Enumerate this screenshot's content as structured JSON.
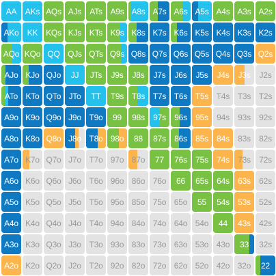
{
  "colors": {
    "empty": "#e3e3e3",
    "B": "#0f79c1",
    "C": "#23c1ec",
    "G": "#79c143",
    "O": "#fbb54c"
  },
  "legend_note": "segments: B=dark blue, C=cyan, G=green, O=orange (fractions of cell width)",
  "rows": [
    [
      {
        "label": "AA",
        "segs": [
          [
            "C",
            1
          ]
        ]
      },
      {
        "label": "AKs",
        "segs": [
          [
            "C",
            1
          ]
        ]
      },
      {
        "label": "AQs",
        "segs": [
          [
            "G",
            1
          ]
        ]
      },
      {
        "label": "AJs",
        "segs": [
          [
            "G",
            1
          ]
        ]
      },
      {
        "label": "ATs",
        "segs": [
          [
            "G",
            1
          ]
        ]
      },
      {
        "label": "A9s",
        "segs": [
          [
            "G",
            1
          ]
        ]
      },
      {
        "label": "A8s",
        "segs": [
          [
            "G",
            0.15
          ],
          [
            "C",
            0.85
          ]
        ]
      },
      {
        "label": "A7s",
        "segs": [
          [
            "G",
            0.4
          ],
          [
            "B",
            0.6
          ]
        ]
      },
      {
        "label": "A6s",
        "segs": [
          [
            "G",
            0.6
          ],
          [
            "C",
            0.4
          ]
        ]
      },
      {
        "label": "A5s",
        "segs": [
          [
            "B",
            0.3
          ],
          [
            "C",
            0.7
          ]
        ]
      },
      {
        "label": "A4s",
        "segs": [
          [
            "G",
            1
          ]
        ]
      },
      {
        "label": "A3s",
        "segs": [
          [
            "G",
            1
          ]
        ]
      },
      {
        "label": "A2s",
        "segs": [
          [
            "G",
            1
          ]
        ]
      }
    ],
    [
      {
        "label": "AKo",
        "segs": [
          [
            "B",
            0.3
          ],
          [
            "C",
            0.7
          ]
        ]
      },
      {
        "label": "KK",
        "segs": [
          [
            "C",
            1
          ]
        ]
      },
      {
        "label": "KQs",
        "segs": [
          [
            "G",
            1
          ]
        ]
      },
      {
        "label": "KJs",
        "segs": [
          [
            "G",
            1
          ]
        ]
      },
      {
        "label": "KTs",
        "segs": [
          [
            "G",
            1
          ]
        ]
      },
      {
        "label": "K9s",
        "segs": [
          [
            "G",
            0.65
          ],
          [
            "C",
            0.35
          ]
        ]
      },
      {
        "label": "K8s",
        "segs": [
          [
            "G",
            0.4
          ],
          [
            "B",
            0.6
          ]
        ]
      },
      {
        "label": "K7s",
        "segs": [
          [
            "B",
            1
          ]
        ]
      },
      {
        "label": "K6s",
        "segs": [
          [
            "G",
            0.3
          ],
          [
            "B",
            0.7
          ]
        ]
      },
      {
        "label": "K5s",
        "segs": [
          [
            "B",
            1
          ]
        ]
      },
      {
        "label": "K4s",
        "segs": [
          [
            "B",
            1
          ]
        ]
      },
      {
        "label": "K3s",
        "segs": [
          [
            "B",
            1
          ]
        ]
      },
      {
        "label": "K2s",
        "segs": [
          [
            "B",
            1
          ]
        ]
      }
    ],
    [
      {
        "label": "AQo",
        "segs": [
          [
            "G",
            0.55
          ],
          [
            "C",
            0.45
          ]
        ]
      },
      {
        "label": "KQo",
        "segs": [
          [
            "G",
            1
          ]
        ]
      },
      {
        "label": "QQ",
        "segs": [
          [
            "C",
            1
          ]
        ]
      },
      {
        "label": "QJs",
        "segs": [
          [
            "G",
            1
          ]
        ]
      },
      {
        "label": "QTs",
        "segs": [
          [
            "G",
            1
          ]
        ]
      },
      {
        "label": "Q9s",
        "segs": [
          [
            "G",
            0.7
          ],
          [
            "C",
            0.3
          ]
        ]
      },
      {
        "label": "Q8s",
        "segs": [
          [
            "B",
            1
          ]
        ]
      },
      {
        "label": "Q7s",
        "segs": [
          [
            "B",
            1
          ]
        ]
      },
      {
        "label": "Q6s",
        "segs": [
          [
            "B",
            1
          ]
        ]
      },
      {
        "label": "Q5s",
        "segs": [
          [
            "B",
            1
          ]
        ]
      },
      {
        "label": "Q4s",
        "segs": [
          [
            "B",
            1
          ]
        ]
      },
      {
        "label": "Q3s",
        "segs": [
          [
            "B",
            1
          ]
        ]
      },
      {
        "label": "Q2s",
        "segs": [
          [
            "O",
            1
          ]
        ]
      }
    ],
    [
      {
        "label": "AJo",
        "segs": [
          [
            "G",
            0.2
          ],
          [
            "B",
            0.8
          ]
        ]
      },
      {
        "label": "KJo",
        "segs": [
          [
            "G",
            0.3
          ],
          [
            "B",
            0.7
          ]
        ]
      },
      {
        "label": "QJo",
        "segs": [
          [
            "B",
            1
          ]
        ]
      },
      {
        "label": "JJ",
        "segs": [
          [
            "C",
            1
          ]
        ]
      },
      {
        "label": "JTs",
        "segs": [
          [
            "G",
            1
          ]
        ]
      },
      {
        "label": "J9s",
        "segs": [
          [
            "G",
            1
          ]
        ]
      },
      {
        "label": "J8s",
        "segs": [
          [
            "G",
            1
          ]
        ]
      },
      {
        "label": "J7s",
        "segs": [
          [
            "B",
            1
          ]
        ]
      },
      {
        "label": "J6s",
        "segs": [
          [
            "B",
            1
          ]
        ]
      },
      {
        "label": "J5s",
        "segs": [
          [
            "B",
            1
          ]
        ]
      },
      {
        "label": "J4s",
        "segs": [
          [
            "O",
            1
          ]
        ]
      },
      {
        "label": "J3s",
        "segs": [
          [
            "O",
            0.5
          ]
        ]
      },
      {
        "label": "J2s",
        "segs": []
      }
    ],
    [
      {
        "label": "ATo",
        "segs": [
          [
            "G",
            0.2
          ],
          [
            "C",
            0.15
          ],
          [
            "B",
            0.65
          ]
        ]
      },
      {
        "label": "KTo",
        "segs": [
          [
            "B",
            1
          ]
        ]
      },
      {
        "label": "QTo",
        "segs": [
          [
            "B",
            1
          ]
        ]
      },
      {
        "label": "JTo",
        "segs": [
          [
            "B",
            1
          ]
        ]
      },
      {
        "label": "TT",
        "segs": [
          [
            "C",
            1
          ]
        ]
      },
      {
        "label": "T9s",
        "segs": [
          [
            "G",
            1
          ]
        ]
      },
      {
        "label": "T8s",
        "segs": [
          [
            "G",
            0.45
          ],
          [
            "C",
            0.55
          ]
        ]
      },
      {
        "label": "T7s",
        "segs": [
          [
            "B",
            1
          ]
        ]
      },
      {
        "label": "T6s",
        "segs": [
          [
            "B",
            1
          ]
        ]
      },
      {
        "label": "T5s",
        "segs": [
          [
            "O",
            1
          ]
        ]
      },
      {
        "label": "T4s",
        "segs": []
      },
      {
        "label": "T3s",
        "segs": []
      },
      {
        "label": "T2s",
        "segs": []
      }
    ],
    [
      {
        "label": "A9o",
        "segs": [
          [
            "B",
            1
          ]
        ]
      },
      {
        "label": "K9o",
        "segs": [
          [
            "B",
            1
          ]
        ]
      },
      {
        "label": "Q9o",
        "segs": [
          [
            "B",
            1
          ]
        ]
      },
      {
        "label": "J9o",
        "segs": [
          [
            "B",
            1
          ]
        ]
      },
      {
        "label": "T9o",
        "segs": [
          [
            "B",
            1
          ]
        ]
      },
      {
        "label": "99",
        "segs": [
          [
            "G",
            1
          ]
        ]
      },
      {
        "label": "98s",
        "segs": [
          [
            "G",
            1
          ]
        ]
      },
      {
        "label": "97s",
        "segs": [
          [
            "C",
            0.5
          ],
          [
            "G",
            0.5
          ]
        ]
      },
      {
        "label": "96s",
        "segs": [
          [
            "G",
            0.45
          ],
          [
            "B",
            0.55
          ]
        ]
      },
      {
        "label": "95s",
        "segs": [
          [
            "O",
            1
          ]
        ]
      },
      {
        "label": "94s",
        "segs": []
      },
      {
        "label": "93s",
        "segs": []
      },
      {
        "label": "92s",
        "segs": []
      }
    ],
    [
      {
        "label": "A8o",
        "segs": [
          [
            "B",
            1
          ]
        ]
      },
      {
        "label": "K8o",
        "segs": [
          [
            "B",
            1
          ]
        ]
      },
      {
        "label": "Q8o",
        "segs": [
          [
            "O",
            1
          ]
        ]
      },
      {
        "label": "J8o",
        "segs": [
          [
            "B",
            0.5
          ],
          [
            "O",
            0.2
          ]
        ]
      },
      {
        "label": "T8o",
        "segs": [
          [
            "B",
            0.6
          ],
          [
            "O",
            0.4
          ]
        ]
      },
      {
        "label": "98o",
        "segs": [
          [
            "G",
            0.6
          ],
          [
            "O",
            0.4
          ]
        ]
      },
      {
        "label": "88",
        "segs": [
          [
            "G",
            1
          ]
        ]
      },
      {
        "label": "87s",
        "segs": [
          [
            "G",
            1
          ]
        ]
      },
      {
        "label": "86s",
        "segs": [
          [
            "G",
            0.4
          ],
          [
            "B",
            0.6
          ]
        ]
      },
      {
        "label": "85s",
        "segs": [
          [
            "O",
            1
          ]
        ]
      },
      {
        "label": "84s",
        "segs": [
          [
            "O",
            1
          ]
        ]
      },
      {
        "label": "83s",
        "segs": []
      },
      {
        "label": "82s",
        "segs": []
      }
    ],
    [
      {
        "label": "A7o",
        "segs": [
          [
            "B",
            1
          ]
        ]
      },
      {
        "label": "K7o",
        "segs": [
          [
            "O",
            0.35
          ]
        ]
      },
      {
        "label": "Q7o",
        "segs": []
      },
      {
        "label": "J7o",
        "segs": []
      },
      {
        "label": "T7o",
        "segs": []
      },
      {
        "label": "97o",
        "segs": []
      },
      {
        "label": "87o",
        "segs": [
          [
            "O",
            0.45
          ]
        ]
      },
      {
        "label": "77",
        "segs": [
          [
            "G",
            1
          ]
        ]
      },
      {
        "label": "76s",
        "segs": [
          [
            "G",
            1
          ]
        ]
      },
      {
        "label": "75s",
        "segs": [
          [
            "G",
            1
          ]
        ]
      },
      {
        "label": "74s",
        "segs": [
          [
            "O",
            1
          ]
        ]
      },
      {
        "label": "73s",
        "segs": [
          [
            "O",
            0.4
          ]
        ]
      },
      {
        "label": "72s",
        "segs": []
      }
    ],
    [
      {
        "label": "A6o",
        "segs": [
          [
            "B",
            1
          ]
        ]
      },
      {
        "label": "K6o",
        "segs": []
      },
      {
        "label": "Q6o",
        "segs": []
      },
      {
        "label": "J6o",
        "segs": []
      },
      {
        "label": "T6o",
        "segs": []
      },
      {
        "label": "96o",
        "segs": []
      },
      {
        "label": "86o",
        "segs": []
      },
      {
        "label": "76o",
        "segs": []
      },
      {
        "label": "66",
        "segs": [
          [
            "G",
            1
          ]
        ]
      },
      {
        "label": "65s",
        "segs": [
          [
            "G",
            1
          ]
        ]
      },
      {
        "label": "64s",
        "segs": [
          [
            "G",
            1
          ]
        ]
      },
      {
        "label": "63s",
        "segs": [
          [
            "O",
            1
          ]
        ]
      },
      {
        "label": "62s",
        "segs": []
      }
    ],
    [
      {
        "label": "A5o",
        "segs": [
          [
            "B",
            1
          ]
        ]
      },
      {
        "label": "K5o",
        "segs": []
      },
      {
        "label": "Q5o",
        "segs": []
      },
      {
        "label": "J5o",
        "segs": []
      },
      {
        "label": "T5o",
        "segs": []
      },
      {
        "label": "95o",
        "segs": []
      },
      {
        "label": "85o",
        "segs": []
      },
      {
        "label": "75o",
        "segs": []
      },
      {
        "label": "65o",
        "segs": []
      },
      {
        "label": "55",
        "segs": [
          [
            "G",
            1
          ]
        ]
      },
      {
        "label": "54s",
        "segs": [
          [
            "G",
            1
          ]
        ]
      },
      {
        "label": "53s",
        "segs": [
          [
            "O",
            1
          ]
        ]
      },
      {
        "label": "52s",
        "segs": []
      }
    ],
    [
      {
        "label": "A4o",
        "segs": [
          [
            "B",
            1
          ]
        ]
      },
      {
        "label": "K4o",
        "segs": []
      },
      {
        "label": "Q4o",
        "segs": []
      },
      {
        "label": "J4o",
        "segs": []
      },
      {
        "label": "T4o",
        "segs": []
      },
      {
        "label": "94o",
        "segs": []
      },
      {
        "label": "84o",
        "segs": []
      },
      {
        "label": "74o",
        "segs": []
      },
      {
        "label": "64o",
        "segs": []
      },
      {
        "label": "54o",
        "segs": []
      },
      {
        "label": "44",
        "segs": [
          [
            "G",
            1
          ]
        ]
      },
      {
        "label": "43s",
        "segs": [
          [
            "O",
            1
          ]
        ]
      },
      {
        "label": "42s",
        "segs": []
      }
    ],
    [
      {
        "label": "A3o",
        "segs": [
          [
            "B",
            1
          ]
        ]
      },
      {
        "label": "K3o",
        "segs": []
      },
      {
        "label": "Q3o",
        "segs": []
      },
      {
        "label": "J3o",
        "segs": []
      },
      {
        "label": "T3o",
        "segs": []
      },
      {
        "label": "93o",
        "segs": []
      },
      {
        "label": "83o",
        "segs": []
      },
      {
        "label": "73o",
        "segs": []
      },
      {
        "label": "63o",
        "segs": []
      },
      {
        "label": "53o",
        "segs": []
      },
      {
        "label": "43o",
        "segs": []
      },
      {
        "label": "33",
        "segs": [
          [
            "G",
            0.75
          ],
          [
            "B",
            0.25
          ]
        ]
      },
      {
        "label": "32s",
        "segs": []
      }
    ],
    [
      {
        "label": "A2o",
        "segs": [
          [
            "O",
            1
          ]
        ]
      },
      {
        "label": "K2o",
        "segs": []
      },
      {
        "label": "Q2o",
        "segs": []
      },
      {
        "label": "J2o",
        "segs": []
      },
      {
        "label": "T2o",
        "segs": []
      },
      {
        "label": "92o",
        "segs": []
      },
      {
        "label": "82o",
        "segs": []
      },
      {
        "label": "72o",
        "segs": []
      },
      {
        "label": "62o",
        "segs": []
      },
      {
        "label": "52o",
        "segs": []
      },
      {
        "label": "42o",
        "segs": []
      },
      {
        "label": "32o",
        "segs": []
      },
      {
        "label": "22",
        "segs": [
          [
            "G",
            0.25
          ],
          [
            "B",
            0.75
          ]
        ]
      }
    ]
  ]
}
